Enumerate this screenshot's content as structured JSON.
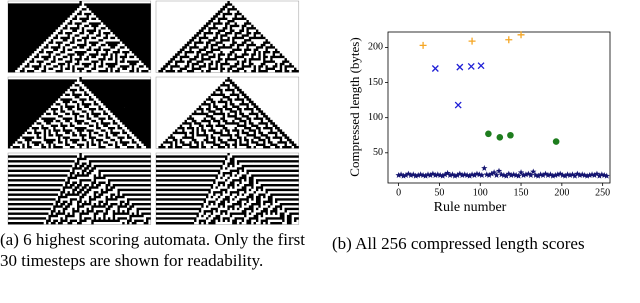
{
  "captions": [
    "(a) 6 highest scoring automata. Only the first 30 timesteps are shown for readability.",
    "(b) All 256 compressed length scores"
  ],
  "chart_data": {
    "type": "scatter",
    "xlabel": "Rule number",
    "ylabel": "Compressed length (bytes)",
    "xlim": [
      -13,
      259
    ],
    "ylim": [
      7,
      222
    ],
    "xticks": [
      0,
      50,
      100,
      150,
      200,
      250
    ],
    "yticks": [
      50,
      100,
      150,
      200
    ],
    "series": [
      {
        "color": "#f5a623",
        "marker": "plus",
        "x": [
          30,
          90,
          135,
          150
        ],
        "values": [
          203,
          209,
          211,
          218
        ]
      },
      {
        "color": "#1f1fd6",
        "marker": "cross",
        "x": [
          45,
          73,
          75,
          89,
          101
        ],
        "values": [
          170,
          118,
          172,
          173,
          174
        ]
      },
      {
        "color": "#1e7d1e",
        "marker": "circle",
        "x": [
          110,
          124,
          137,
          193
        ],
        "values": [
          77,
          72,
          75,
          66
        ]
      },
      {
        "color": "#141470",
        "marker": "star",
        "x": [
          0,
          3,
          6,
          9,
          12,
          15,
          18,
          21,
          24,
          27,
          30,
          33,
          36,
          39,
          42,
          45,
          48,
          51,
          54,
          57,
          60,
          63,
          66,
          69,
          72,
          75,
          78,
          81,
          84,
          87,
          90,
          93,
          96,
          99,
          102,
          105,
          108,
          111,
          114,
          117,
          120,
          123,
          126,
          129,
          132,
          135,
          138,
          141,
          144,
          147,
          150,
          153,
          156,
          159,
          162,
          165,
          168,
          171,
          174,
          177,
          180,
          183,
          186,
          189,
          192,
          195,
          198,
          201,
          204,
          207,
          210,
          213,
          216,
          219,
          222,
          225,
          228,
          231,
          234,
          237,
          240,
          243,
          246,
          249,
          252,
          255
        ],
        "values": [
          18,
          19,
          17,
          18,
          20,
          18,
          19,
          17,
          18,
          19,
          18,
          17,
          19,
          18,
          20,
          18,
          19,
          18,
          17,
          19,
          21,
          18,
          19,
          17,
          18,
          20,
          18,
          19,
          18,
          17,
          19,
          18,
          20,
          19,
          18,
          28,
          19,
          18,
          20,
          22,
          18,
          24,
          19,
          18,
          17,
          20,
          18,
          19,
          18,
          17,
          22,
          18,
          19,
          20,
          18,
          23,
          18,
          17,
          19,
          18,
          20,
          18,
          19,
          17,
          18,
          19,
          20,
          18,
          17,
          19,
          18,
          19,
          17,
          20,
          18,
          19,
          18,
          17,
          18,
          19,
          18,
          20,
          17,
          19,
          18,
          17
        ]
      }
    ]
  }
}
